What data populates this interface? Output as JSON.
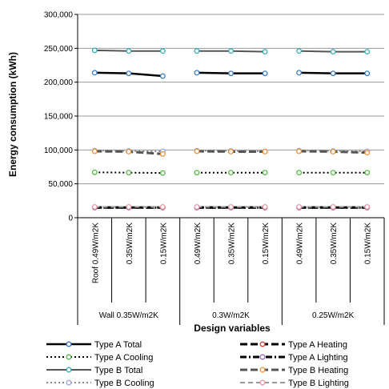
{
  "chart_data": {
    "type": "line",
    "ylabel": "Energy consumption  (kWh)",
    "xlabel": "Design variables",
    "ylim": [
      0,
      300000
    ],
    "yticks": [
      "0",
      "50,000",
      "100,000",
      "150,000",
      "200,000",
      "250,000",
      "300,000"
    ],
    "ytick_values": [
      0,
      50000,
      100000,
      150000,
      200000,
      250000,
      300000
    ],
    "roof_labels": [
      "Roof 0.49W/m2K",
      "0.35W/m2K",
      "0.15W/m2K",
      "0.49W/m2K",
      "0.35W/m2K",
      "0.15W/m2K",
      "0.49W/m2K",
      "0.35W/m2K",
      "0.15W/m2K"
    ],
    "wall_labels": [
      "Wall 0.35W/m2K",
      "0.3W/m2K",
      "0.25W/m2K"
    ],
    "groups": [
      3,
      3,
      3
    ],
    "series": [
      {
        "name": "Type A Total",
        "color": "#000000",
        "marker": "#3a7bbf",
        "dash": "solid",
        "width": 2.5,
        "values": [
          [
            214000,
            213000,
            209000
          ],
          [
            214000,
            213000,
            213000
          ],
          [
            214000,
            213000,
            213000
          ]
        ]
      },
      {
        "name": "Type A Cooling",
        "color": "#000000",
        "marker": "#59b54a",
        "dash": "dotted",
        "width": 2,
        "values": [
          [
            67000,
            66500,
            66000
          ],
          [
            66500,
            66500,
            66500
          ],
          [
            66500,
            66500,
            66500
          ]
        ]
      },
      {
        "name": "Type B Total",
        "color": "#555555",
        "marker": "#3aaeb8",
        "dash": "solid",
        "width": 2,
        "values": [
          [
            247000,
            246000,
            246000
          ],
          [
            246000,
            246000,
            245000
          ],
          [
            246000,
            245000,
            245000
          ]
        ]
      },
      {
        "name": "Type B Cooling",
        "color": "#888888",
        "marker": "#9aa6d6",
        "dash": "dotted",
        "width": 2,
        "values": [
          [
            99000,
            98500,
            98000
          ],
          [
            99000,
            98500,
            98000
          ],
          [
            99000,
            98500,
            98000
          ]
        ]
      },
      {
        "name": "Type A Heating",
        "color": "#000000",
        "marker": "#e04a3f",
        "dash": "longdash",
        "width": 3,
        "values": [
          [
            15000,
            15000,
            15000
          ],
          [
            15000,
            15000,
            15000
          ],
          [
            15000,
            15000,
            15000
          ]
        ]
      },
      {
        "name": "Type A Lighting",
        "color": "#000000",
        "marker": "#9b6fb4",
        "dash": "dashdot",
        "width": 3,
        "values": [
          [
            15000,
            15000,
            15000
          ],
          [
            15000,
            15000,
            15000
          ],
          [
            15000,
            15000,
            15000
          ]
        ]
      },
      {
        "name": "Type B Heating",
        "color": "#555555",
        "marker": "#f0943c",
        "dash": "longdash",
        "width": 3,
        "values": [
          [
            98000,
            97500,
            94000
          ],
          [
            98000,
            97500,
            97500
          ],
          [
            98000,
            97500,
            96000
          ]
        ]
      },
      {
        "name": "Type B Lighting",
        "color": "#999999",
        "marker": "#e89aa0",
        "dash": "dash",
        "width": 2,
        "values": [
          [
            16000,
            16000,
            16000
          ],
          [
            16000,
            16000,
            16000
          ],
          [
            16000,
            16000,
            16000
          ]
        ]
      }
    ],
    "legend": {
      "placement": "bottom",
      "left_column": [
        "Type A Total",
        "Type A Cooling",
        "Type B Total",
        "Type B Cooling"
      ],
      "right_column": [
        "Type A Heating",
        "Type A Lighting",
        "Type B Heating",
        "Type B Lighting"
      ]
    },
    "grid": "horizontal"
  }
}
